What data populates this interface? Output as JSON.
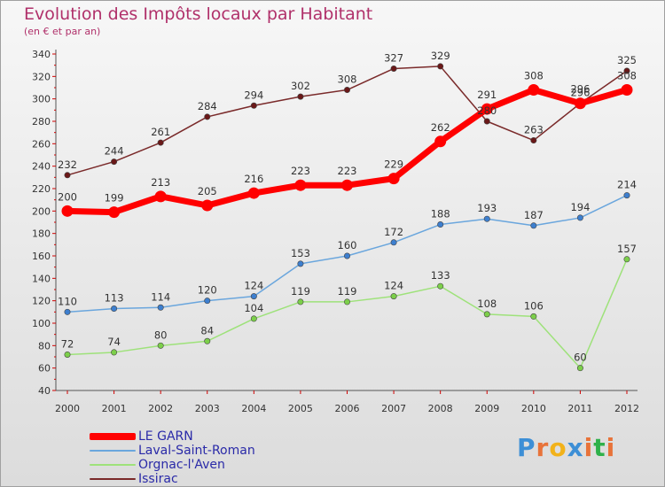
{
  "header": {
    "title": "Evolution des Impôts locaux par Habitant",
    "subtitle": "(en € et par an)"
  },
  "logo": {
    "text": "Proxiti",
    "letter_colors": [
      "#3d8fd6",
      "#e8733a",
      "#f2b21a",
      "#3d8fd6",
      "#e8733a",
      "#2fb14b",
      "#e8733a"
    ]
  },
  "colors": {
    "axis": "#555555",
    "grid_tick": "#d00000",
    "label": "#333333"
  },
  "chart_data": {
    "type": "line",
    "title": "Evolution des Impôts locaux par Habitant",
    "subtitle": "(en € et par an)",
    "xlabel": "",
    "ylabel": "",
    "categories": [
      "2000",
      "2001",
      "2002",
      "2003",
      "2004",
      "2005",
      "2006",
      "2007",
      "2008",
      "2009",
      "2010",
      "2011",
      "2012"
    ],
    "ylim": [
      40,
      340
    ],
    "yticks": [
      40,
      60,
      80,
      100,
      120,
      140,
      160,
      180,
      200,
      220,
      240,
      260,
      280,
      300,
      320,
      340
    ],
    "grid": false,
    "legend_position": "bottom-left",
    "series": [
      {
        "name": "LE GARN",
        "color": "#ff0000",
        "values": [
          200,
          199,
          213,
          205,
          216,
          223,
          223,
          229,
          262,
          291,
          308,
          296,
          308
        ],
        "labels": [
          "200",
          "199",
          "213",
          "205",
          "216",
          "223",
          "223",
          "229",
          "262",
          "291",
          "308",
          "296",
          "308"
        ]
      },
      {
        "name": "Laval-Saint-Roman",
        "color": "#6aa6dd",
        "marker": "#3d7fcf",
        "values": [
          110,
          113,
          114,
          120,
          124,
          153,
          160,
          172,
          188,
          193,
          187,
          194,
          214
        ],
        "labels": [
          "110",
          "113",
          "114",
          "120",
          "124",
          "153",
          "160",
          "172",
          "188",
          "193",
          "187",
          "194",
          "214"
        ]
      },
      {
        "name": "Orgnac-l'Aven",
        "color": "#9ee27a",
        "marker": "#7ccf4a",
        "values": [
          72,
          74,
          80,
          84,
          104,
          119,
          119,
          124,
          133,
          108,
          106,
          60,
          157
        ],
        "labels": [
          "72",
          "74",
          "80",
          "84",
          "104",
          "119",
          "119",
          "124",
          "133",
          "108",
          "106",
          "60",
          "157"
        ]
      },
      {
        "name": "Issirac",
        "color": "#7a2a2a",
        "marker": "#6a1818",
        "values": [
          232,
          244,
          261,
          284,
          294,
          302,
          308,
          327,
          329,
          280,
          263,
          296,
          325
        ],
        "labels": [
          "232",
          "244",
          "261",
          "284",
          "294",
          "302",
          "308",
          "327",
          "329",
          "280",
          "263",
          "296",
          "325"
        ]
      }
    ]
  }
}
